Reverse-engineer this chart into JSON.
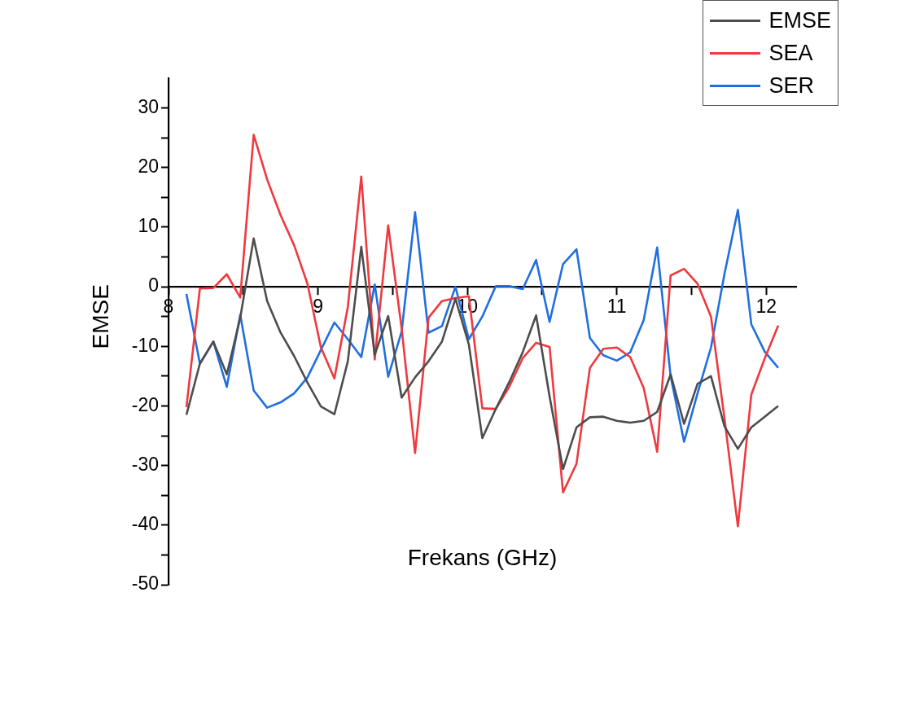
{
  "chart_data": {
    "type": "line",
    "xlabel": "Frekans (GHz)",
    "ylabel": "EMSE",
    "x": [
      8.12,
      8.21,
      8.3,
      8.39,
      8.48,
      8.57,
      8.66,
      8.75,
      8.84,
      8.93,
      9.02,
      9.11,
      9.2,
      9.29,
      9.38,
      9.47,
      9.56,
      9.65,
      9.74,
      9.83,
      9.92,
      10.01,
      10.1,
      10.19,
      10.28,
      10.37,
      10.46,
      10.55,
      10.64,
      10.73,
      10.82,
      10.91,
      11.0,
      11.09,
      11.18,
      11.27,
      11.36,
      11.45,
      11.54,
      11.63,
      11.72,
      11.81,
      11.9,
      11.99,
      12.08
    ],
    "series": [
      {
        "name": "EMSE",
        "color": "#4d4d4d",
        "values": [
          -21.5,
          -12.9,
          -9.2,
          -14.7,
          -5.2,
          8.1,
          -2.4,
          -7.7,
          -11.6,
          -16.1,
          -20.1,
          -21.4,
          -12.5,
          6.7,
          -11.4,
          -4.9,
          -18.6,
          -15.2,
          -12.5,
          -9.2,
          -2,
          -9.7,
          -25.4,
          -20.5,
          -16,
          -11,
          -4.8,
          -18.4,
          -30.6,
          -23.6,
          -21.9,
          -21.8,
          -22.5,
          -22.8,
          -22.5,
          -21,
          -14.7,
          -23,
          -16.3,
          -15,
          -23.4,
          -27.2,
          -23.6,
          -21.8,
          -20
        ]
      },
      {
        "name": "SEA",
        "color": "#f0393e",
        "values": [
          -20.2,
          -0.3,
          -0.2,
          2.1,
          -1.8,
          25.5,
          18,
          12,
          7,
          0.5,
          -10.2,
          -15.4,
          -3.4,
          18.5,
          -12.2,
          10.3,
          -7,
          -27.9,
          -5.2,
          -2.4,
          -1.9,
          -1.6,
          -20.4,
          -20.5,
          -16.8,
          -12,
          -9.4,
          -10.1,
          -34.5,
          -29.7,
          -13.6,
          -10.4,
          -10.2,
          -11.8,
          -17,
          -27.7,
          1.9,
          3,
          0.5,
          -5,
          -22,
          -40.2,
          -18.1,
          -12,
          -6.5
        ]
      },
      {
        "name": "SER",
        "color": "#1f6fe0",
        "values": [
          -1.2,
          -12.9,
          -9.2,
          -16.8,
          -4.7,
          -17.4,
          -20.3,
          -19.4,
          -17.9,
          -15.2,
          -10.6,
          -6,
          -8.8,
          -11.8,
          0.4,
          -15.1,
          -7.5,
          12.5,
          -7.7,
          -6.6,
          0,
          -8.8,
          -5,
          0.1,
          0.1,
          -0.4,
          4.5,
          -5.9,
          3.8,
          6.3,
          -8.6,
          -11.5,
          -12.4,
          -11,
          -5.6,
          6.6,
          -15,
          -26,
          -17.9,
          -10.2,
          2.1,
          12.9,
          -6.3,
          -10.9,
          -13.6
        ]
      }
    ],
    "xlim": [
      8,
      12.2
    ],
    "xticks": [
      8,
      {
        "value": 8.5,
        "label": null
      },
      9,
      {
        "value": 9.5,
        "label": null
      },
      10,
      {
        "value": 10.5,
        "label": null
      },
      11,
      {
        "value": 11.5,
        "label": null
      },
      12
    ],
    "ylim": [
      -50,
      35
    ],
    "yticks": [
      -50,
      {
        "value": -45,
        "label": null
      },
      -40,
      {
        "value": -35,
        "label": null
      },
      -30,
      {
        "value": -25,
        "label": null
      },
      -20,
      {
        "value": -15,
        "label": null
      },
      -10,
      {
        "value": -5,
        "label": null
      },
      0,
      {
        "value": 5,
        "label": null
      },
      10,
      {
        "value": 15,
        "label": null
      },
      20,
      {
        "value": 25,
        "label": null
      },
      30
    ],
    "grid": false,
    "legend": "top right",
    "marker": "none",
    "line_style": "solid"
  }
}
